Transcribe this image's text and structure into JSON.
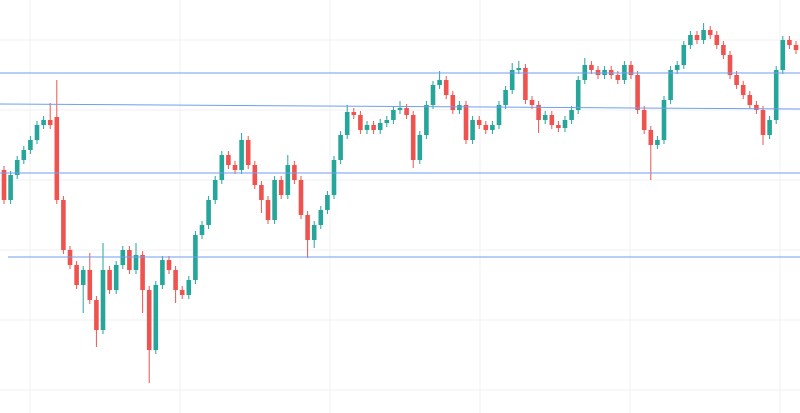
{
  "chart_data": {
    "type": "candlestick",
    "ylim": [
      0,
      413
    ],
    "up_color": "#26a69a",
    "down_color": "#ef5350",
    "level_color": "#6f9ff0",
    "open": [
      243,
      213,
      238,
      253,
      263,
      273,
      288,
      293,
      296,
      213,
      163,
      148,
      128,
      143,
      113,
      83,
      143,
      123,
      148,
      163,
      143,
      158,
      123,
      63,
      128,
      153,
      143,
      123,
      118,
      133,
      178,
      188,
      213,
      233,
      258,
      248,
      243,
      273,
      248,
      228,
      213,
      193,
      233,
      218,
      248,
      233,
      198,
      173,
      188,
      203,
      218,
      253,
      278,
      301,
      298,
      283,
      288,
      283,
      290,
      293,
      303,
      305,
      298,
      253,
      278,
      308,
      328,
      333,
      318,
      303,
      308,
      273,
      293,
      288,
      283,
      288,
      308,
      323,
      343,
      345,
      313,
      308,
      293,
      298,
      288,
      285,
      293,
      303,
      333,
      348,
      343,
      338,
      343,
      338,
      333,
      348,
      338,
      303,
      283,
      268,
      273,
      313,
      343,
      348,
      368,
      378,
      373,
      383,
      378,
      368,
      358,
      338,
      328,
      318,
      308,
      303,
      278,
      293,
      343,
      373,
      368
    ],
    "high": [
      247,
      242,
      257,
      267,
      277,
      292,
      297,
      310,
      333,
      217,
      167,
      152,
      147,
      160,
      117,
      170,
      147,
      152,
      167,
      167,
      170,
      162,
      127,
      132,
      157,
      157,
      147,
      127,
      137,
      182,
      192,
      217,
      237,
      262,
      262,
      252,
      280,
      277,
      252,
      232,
      217,
      237,
      237,
      258,
      252,
      237,
      202,
      192,
      207,
      222,
      257,
      282,
      308,
      305,
      302,
      292,
      292,
      294,
      297,
      307,
      312,
      309,
      302,
      282,
      312,
      332,
      342,
      337,
      322,
      312,
      312,
      297,
      297,
      292,
      292,
      312,
      327,
      350,
      352,
      349,
      317,
      312,
      302,
      302,
      292,
      297,
      307,
      337,
      355,
      352,
      347,
      347,
      347,
      342,
      352,
      352,
      342,
      307,
      287,
      277,
      317,
      347,
      352,
      372,
      382,
      382,
      390,
      387,
      382,
      372,
      362,
      342,
      332,
      322,
      312,
      307,
      297,
      347,
      377,
      377,
      372
    ],
    "low": [
      209,
      209,
      234,
      249,
      259,
      269,
      284,
      284,
      209,
      159,
      144,
      124,
      100,
      109,
      66,
      79,
      119,
      119,
      144,
      139,
      139,
      100,
      30,
      59,
      124,
      139,
      110,
      114,
      114,
      129,
      174,
      184,
      209,
      229,
      244,
      239,
      239,
      244,
      224,
      200,
      189,
      189,
      214,
      214,
      229,
      194,
      155,
      165,
      184,
      199,
      214,
      249,
      274,
      294,
      279,
      279,
      279,
      279,
      286,
      289,
      299,
      294,
      245,
      249,
      274,
      304,
      324,
      314,
      299,
      299,
      269,
      269,
      284,
      279,
      279,
      284,
      304,
      319,
      339,
      309,
      304,
      280,
      289,
      284,
      281,
      281,
      289,
      299,
      329,
      339,
      334,
      334,
      334,
      329,
      329,
      334,
      299,
      279,
      233,
      264,
      269,
      309,
      339,
      344,
      364,
      369,
      369,
      374,
      364,
      354,
      334,
      324,
      314,
      304,
      299,
      268,
      274,
      289,
      339,
      364,
      359
    ],
    "close": [
      213,
      238,
      253,
      263,
      273,
      288,
      293,
      288,
      213,
      163,
      148,
      128,
      143,
      113,
      83,
      143,
      123,
      148,
      163,
      143,
      158,
      123,
      63,
      128,
      153,
      143,
      123,
      118,
      133,
      178,
      188,
      213,
      233,
      258,
      248,
      243,
      273,
      248,
      228,
      213,
      193,
      233,
      218,
      248,
      233,
      198,
      173,
      188,
      203,
      218,
      253,
      278,
      301,
      298,
      283,
      288,
      283,
      290,
      293,
      303,
      305,
      298,
      253,
      278,
      308,
      328,
      333,
      318,
      303,
      308,
      273,
      293,
      288,
      283,
      288,
      308,
      323,
      343,
      345,
      313,
      308,
      293,
      298,
      288,
      285,
      293,
      303,
      333,
      348,
      343,
      338,
      343,
      338,
      333,
      348,
      338,
      303,
      283,
      268,
      273,
      313,
      343,
      348,
      368,
      378,
      373,
      383,
      378,
      368,
      358,
      338,
      328,
      318,
      308,
      303,
      278,
      293,
      343,
      373,
      368,
      363
    ],
    "levels": [
      [
        340,
        340
      ],
      [
        309,
        304
      ],
      [
        240,
        240
      ],
      [
        156,
        156
      ]
    ]
  }
}
